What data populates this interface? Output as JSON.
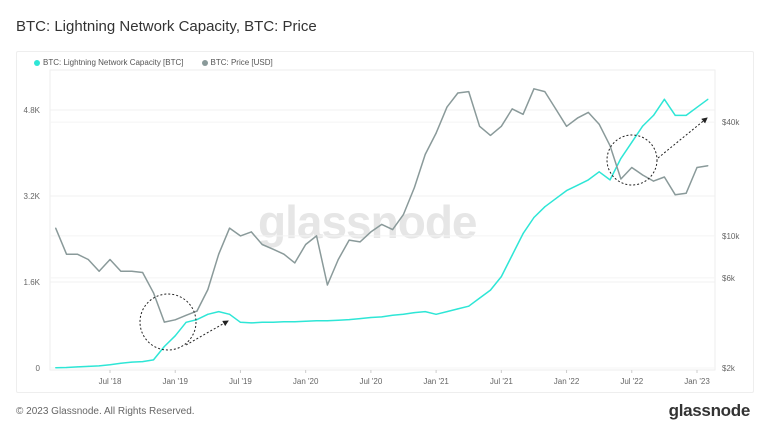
{
  "title": "BTC: Lightning Network Capacity, BTC: Price",
  "footer": "© 2023 Glassnode. All Rights Reserved.",
  "brand": "glassnode",
  "watermark": "glassnode",
  "chart_data": {
    "type": "line",
    "title": "BTC: Lightning Network Capacity, BTC: Price",
    "legend_position": "top-left",
    "grid": true,
    "x_ticks": [
      "Jul '18",
      "Jan '19",
      "Jul '19",
      "Jan '20",
      "Jul '20",
      "Jan '21",
      "Jul '21",
      "Jan '22",
      "Jul '22",
      "Jan '23"
    ],
    "y_left_ticks": [
      "0",
      "1.6K",
      "3.2K",
      "4.8K"
    ],
    "y_left_range": [
      0,
      5600
    ],
    "y_right_ticks": [
      "$2k",
      "$6k",
      "$10k",
      "$40k"
    ],
    "y_right_scale": "log",
    "y_right_range": [
      2000,
      80000
    ],
    "x": [
      "2018-02",
      "2018-03",
      "2018-04",
      "2018-05",
      "2018-06",
      "2018-07",
      "2018-08",
      "2018-09",
      "2018-10",
      "2018-11",
      "2018-12",
      "2019-01",
      "2019-02",
      "2019-03",
      "2019-04",
      "2019-05",
      "2019-06",
      "2019-07",
      "2019-08",
      "2019-09",
      "2019-10",
      "2019-11",
      "2019-12",
      "2020-01",
      "2020-02",
      "2020-03",
      "2020-04",
      "2020-05",
      "2020-06",
      "2020-07",
      "2020-08",
      "2020-09",
      "2020-10",
      "2020-11",
      "2020-12",
      "2021-01",
      "2021-02",
      "2021-03",
      "2021-04",
      "2021-05",
      "2021-06",
      "2021-07",
      "2021-08",
      "2021-09",
      "2021-10",
      "2021-11",
      "2021-12",
      "2022-01",
      "2022-02",
      "2022-03",
      "2022-04",
      "2022-05",
      "2022-06",
      "2022-07",
      "2022-08",
      "2022-09",
      "2022-10",
      "2022-11",
      "2022-12",
      "2023-01",
      "2023-02"
    ],
    "series": [
      {
        "name": "BTC: Lightning Network Capacity [BTC]",
        "color": "#2ee6d6",
        "axis": "left",
        "values": [
          5,
          10,
          20,
          30,
          40,
          60,
          90,
          110,
          120,
          150,
          400,
          600,
          850,
          900,
          1000,
          1050,
          1000,
          850,
          840,
          850,
          850,
          860,
          860,
          870,
          880,
          880,
          890,
          900,
          920,
          940,
          950,
          980,
          1000,
          1030,
          1050,
          1000,
          1050,
          1100,
          1150,
          1300,
          1450,
          1700,
          2100,
          2500,
          2800,
          3000,
          3150,
          3300,
          3400,
          3500,
          3650,
          3500,
          3900,
          4200,
          4500,
          4700,
          5000,
          4700,
          4700,
          4850,
          5000
        ]
      },
      {
        "name": "BTC: Price [USD]",
        "color": "#8a9a9a",
        "axis": "right",
        "values": [
          11000,
          8000,
          8000,
          7500,
          6500,
          7500,
          6500,
          6500,
          6400,
          5000,
          3500,
          3600,
          3800,
          4000,
          5200,
          8000,
          11000,
          10000,
          10500,
          9000,
          8500,
          8000,
          7200,
          9000,
          10000,
          5500,
          7500,
          9500,
          9300,
          10500,
          11500,
          10800,
          13000,
          18000,
          27000,
          35000,
          48000,
          57000,
          58000,
          38000,
          34000,
          38000,
          47000,
          44000,
          60000,
          58000,
          47000,
          38000,
          42000,
          45000,
          39000,
          30000,
          20000,
          23000,
          21000,
          19500,
          20500,
          16500,
          16800,
          23000,
          23500
        ]
      }
    ]
  }
}
